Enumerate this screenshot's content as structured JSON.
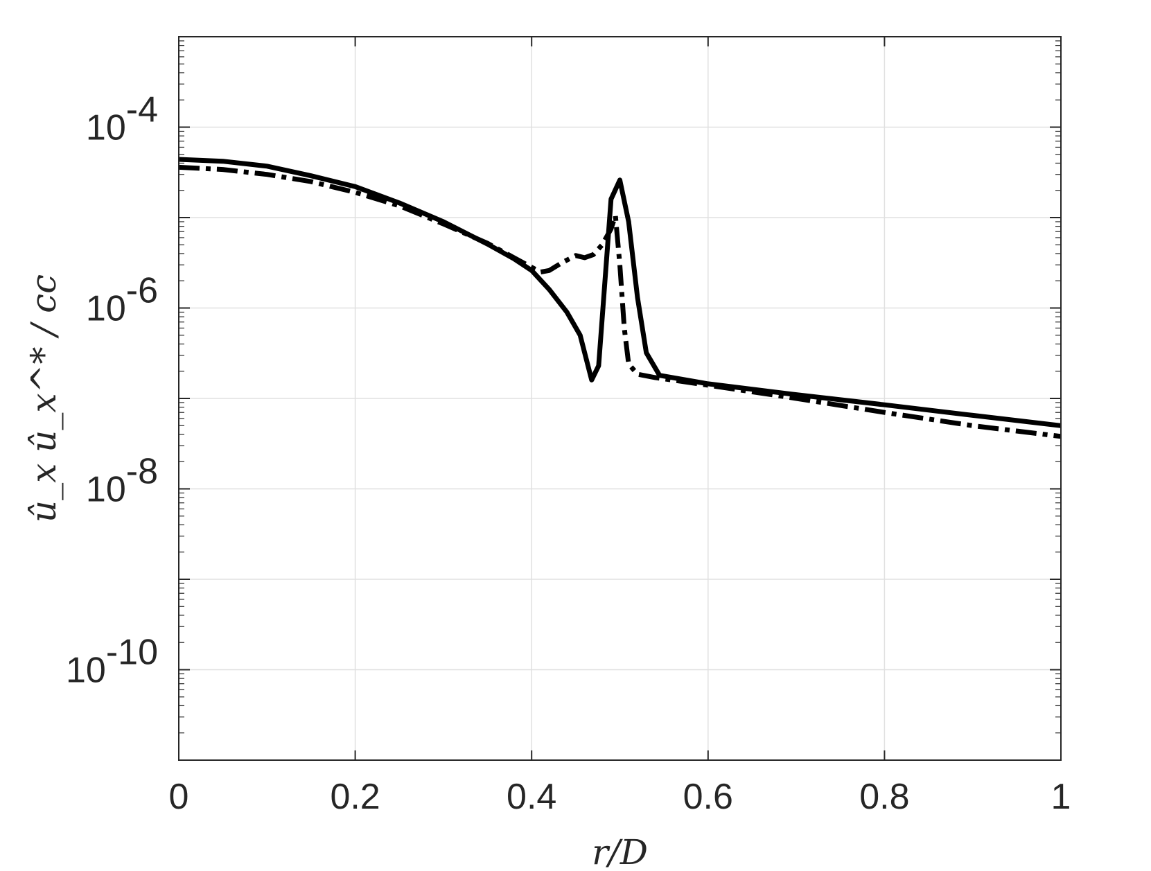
{
  "chart_data": {
    "type": "line",
    "title": "",
    "xlabel": "r/D",
    "ylabel": "û_x û_x^* / cc",
    "xlim": [
      0,
      1
    ],
    "ylim": [
      1e-11,
      0.001
    ],
    "yscale": "log",
    "grid": true,
    "x_ticks": [
      0,
      0.2,
      0.4,
      0.6,
      0.8,
      1
    ],
    "x_tick_labels": [
      "0",
      "0.2",
      "0.4",
      "0.6",
      "0.8",
      "1"
    ],
    "y_ticks": [
      1e-10,
      1e-08,
      1e-06,
      0.0001
    ],
    "y_tick_labels": [
      {
        "base": "10",
        "exp": "-10"
      },
      {
        "base": "10",
        "exp": "-8"
      },
      {
        "base": "10",
        "exp": "-6"
      },
      {
        "base": "10",
        "exp": "-4"
      }
    ],
    "series": [
      {
        "style": "solid",
        "color": "#000000",
        "x": [
          0,
          0.05,
          0.1,
          0.15,
          0.2,
          0.25,
          0.3,
          0.35,
          0.38,
          0.4,
          0.42,
          0.44,
          0.455,
          0.468,
          0.476,
          0.49,
          0.5,
          0.51,
          0.52,
          0.53,
          0.545,
          0.6,
          0.7,
          0.8,
          0.9,
          1.0
        ],
        "y": [
          4.4e-05,
          4.2e-05,
          3.7e-05,
          2.9e-05,
          2.2e-05,
          1.45e-05,
          9e-06,
          5.1e-06,
          3.5e-06,
          2.6e-06,
          1.6e-06,
          9e-07,
          5e-07,
          1.6e-07,
          2.3e-07,
          1.6e-05,
          2.6e-05,
          9e-06,
          1.3e-06,
          3.2e-07,
          1.8e-07,
          1.45e-07,
          1.1e-07,
          8.5e-08,
          6.5e-08,
          5e-08
        ]
      },
      {
        "style": "dashdot",
        "color": "#000000",
        "x": [
          0,
          0.05,
          0.1,
          0.15,
          0.2,
          0.25,
          0.3,
          0.35,
          0.38,
          0.41,
          0.42,
          0.435,
          0.45,
          0.46,
          0.47,
          0.48,
          0.49,
          0.495,
          0.5,
          0.505,
          0.51,
          0.52,
          0.54,
          0.6,
          0.7,
          0.8,
          0.9,
          1.0
        ],
        "y": [
          3.6e-05,
          3.4e-05,
          3e-05,
          2.5e-05,
          1.9e-05,
          1.35e-05,
          8.5e-06,
          5.2e-06,
          3.6e-06,
          2.5e-06,
          2.6e-06,
          3.2e-06,
          3.8e-06,
          3.6e-06,
          3.9e-06,
          5e-06,
          7.5e-06,
          1.05e-05,
          3e-06,
          6e-07,
          2.4e-07,
          1.85e-07,
          1.7e-07,
          1.4e-07,
          1e-07,
          7e-08,
          5e-08,
          3.8e-08
        ]
      }
    ]
  }
}
